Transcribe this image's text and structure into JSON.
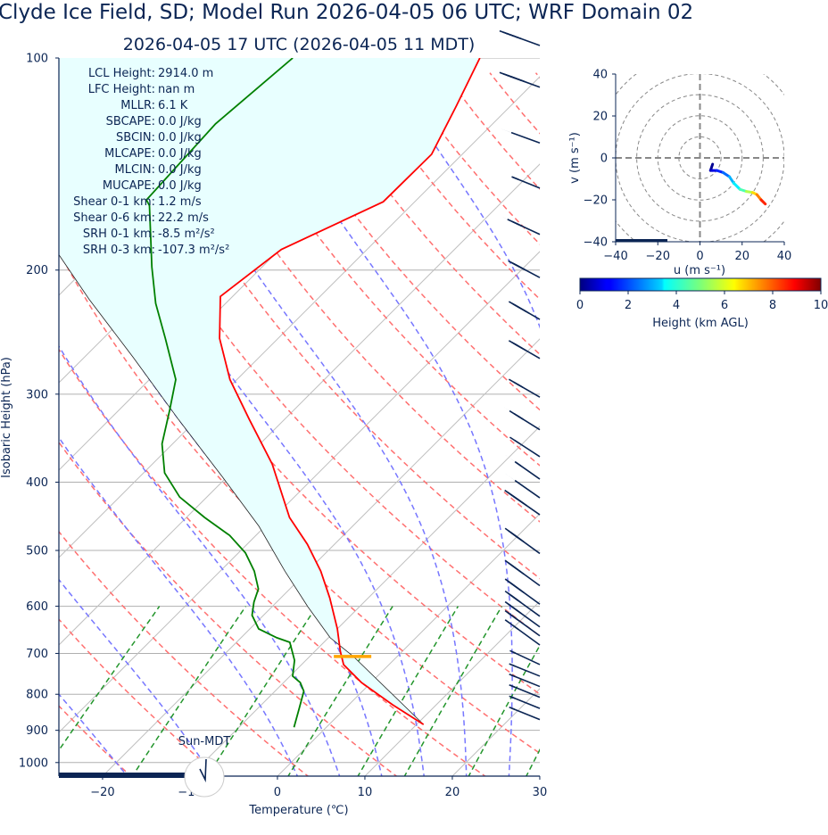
{
  "title": "Clyde Ice Field, SD; Model Run 2026-04-05 06 UTC; WRF Domain 02",
  "subtitle": "2026-04-05 17 UTC  (2026-04-05 11 MDT)",
  "daylight_label": "Sun-MDT",
  "stats": [
    {
      "label": "LCL Height:",
      "value": "2914.0 m"
    },
    {
      "label": "LFC Height:",
      "value": "nan m"
    },
    {
      "label": "MLLR:",
      "value": "6.1 K"
    },
    {
      "label": "SBCAPE:",
      "value": "0.0 J/kg"
    },
    {
      "label": "SBCIN:",
      "value": "0.0 J/kg"
    },
    {
      "label": "MLCAPE:",
      "value": "0.0 J/kg"
    },
    {
      "label": "MLCIN:",
      "value": "0.0 J/kg"
    },
    {
      "label": "MUCAPE:",
      "value": "0.0 J/kg"
    },
    {
      "label": "Shear 0-1 km:",
      "value": "1.2 m/s"
    },
    {
      "label": "Shear 0-6 km:",
      "value": "22.2 m/s"
    },
    {
      "label": "SRH 0-1 km:",
      "value": "-8.5 m²/s²"
    },
    {
      "label": "SRH 0-3 km:",
      "value": "-107.3 m²/s²"
    }
  ],
  "chart_data": [
    {
      "type": "line",
      "subtype": "skew-t",
      "xlabel": "Temperature (℃)",
      "ylabel": "Isobaric Height (hPa)",
      "xlim": [
        -25,
        30
      ],
      "ylim": [
        1045,
        100
      ],
      "y_scale": "log",
      "xticks": [
        "−20",
        "−10",
        "0",
        "10",
        "20",
        "30"
      ],
      "xtick_values": [
        -20,
        -10,
        0,
        10,
        20,
        30
      ],
      "yticks": [
        "100",
        "200",
        "300",
        "400",
        "500",
        "600",
        "700",
        "800",
        "900",
        "1000"
      ],
      "ytick_values": [
        100,
        200,
        300,
        400,
        500,
        600,
        700,
        800,
        900,
        1000
      ],
      "grid": true,
      "colors": {
        "temperature": "#ff0000",
        "dewpoint": "#008000",
        "parcel": "#000000",
        "cin_fill": "#e8ffff",
        "dry_adiabat": "#ff7070",
        "moist_adiabat": "#7777ff",
        "mixing_ratio": "#22952b",
        "lcl": "#ffa500",
        "barb": "#0b2554"
      },
      "temperature": [
        [
          883,
          10.8
        ],
        [
          828,
          5.0
        ],
        [
          770,
          -1.1
        ],
        [
          726,
          -5.2
        ],
        [
          695,
          -7.1
        ],
        [
          646,
          -10.0
        ],
        [
          584,
          -14.4
        ],
        [
          535,
          -18.5
        ],
        [
          490,
          -23.1
        ],
        [
          449,
          -28.2
        ],
        [
          377,
          -36.3
        ],
        [
          326,
          -44.0
        ],
        [
          286,
          -50.8
        ],
        [
          250,
          -56.7
        ],
        [
          218,
          -61.4
        ],
        [
          187,
          -59.8
        ],
        [
          160,
          -53.6
        ],
        [
          137,
          -53.5
        ],
        [
          117,
          -56.2
        ],
        [
          100,
          -59.0
        ]
      ],
      "dewpoint": [
        [
          891,
          -3.7
        ],
        [
          840,
          -5.2
        ],
        [
          792,
          -6.7
        ],
        [
          770,
          -8.1
        ],
        [
          754,
          -9.7
        ],
        [
          716,
          -11.3
        ],
        [
          675,
          -13.9
        ],
        [
          665,
          -15.9
        ],
        [
          646,
          -19.0
        ],
        [
          618,
          -21.3
        ],
        [
          592,
          -22.6
        ],
        [
          567,
          -23.6
        ],
        [
          535,
          -26.1
        ],
        [
          504,
          -29.2
        ],
        [
          476,
          -33.0
        ],
        [
          449,
          -37.9
        ],
        [
          420,
          -43.1
        ],
        [
          388,
          -47.6
        ],
        [
          353,
          -51.2
        ],
        [
          316,
          -54.2
        ],
        [
          286,
          -57.0
        ],
        [
          250,
          -62.9
        ],
        [
          223,
          -68.0
        ],
        [
          198,
          -72.6
        ],
        [
          162,
          -79.9
        ],
        [
          159,
          -80.9
        ],
        [
          124,
          -81.7
        ],
        [
          100,
          -80.4
        ]
      ],
      "parcel": [
        [
          883,
          10.8
        ],
        [
          707,
          -5.0
        ],
        [
          665,
          -9.8
        ],
        [
          601,
          -15.9
        ],
        [
          535,
          -22.6
        ],
        [
          462,
          -30.7
        ],
        [
          394,
          -40.4
        ],
        [
          326,
          -52.1
        ],
        [
          266,
          -64.4
        ],
        [
          220,
          -76.1
        ],
        [
          190,
          -84.7
        ],
        [
          150,
          -100
        ],
        [
          100,
          -118
        ]
      ],
      "lcl": [
        707,
        -5.0
      ],
      "dry_adiabats_theta_c": [
        -30,
        -20,
        -10,
        0,
        10,
        20,
        30,
        40,
        50,
        60,
        70,
        80,
        90,
        100,
        110,
        120,
        130,
        140,
        150,
        160,
        170,
        180,
        190,
        200
      ],
      "moist_adiabats_t0_c": [
        -50,
        -40,
        -30,
        -20,
        -10,
        0,
        5,
        10,
        15,
        20,
        25,
        30,
        35,
        40,
        45,
        50
      ],
      "mixing_ratios": [
        0.0004,
        0.001,
        0.002,
        0.004,
        0.007,
        0.01,
        0.016,
        0.024,
        0.032
      ],
      "wind_barbs_kt": [
        [
          96,
          35,
          290
        ],
        [
          110,
          45,
          290
        ],
        [
          132,
          50,
          290
        ],
        [
          153,
          55,
          292
        ],
        [
          178,
          65,
          295
        ],
        [
          205,
          80,
          298
        ],
        [
          235,
          85,
          300
        ],
        [
          267,
          80,
          300
        ],
        [
          303,
          65,
          300
        ],
        [
          337,
          65,
          302
        ],
        [
          368,
          60,
          303
        ],
        [
          396,
          55,
          305
        ],
        [
          421,
          50,
          305
        ],
        [
          445,
          45,
          305
        ],
        [
          505,
          40,
          306
        ],
        [
          561,
          35,
          306
        ],
        [
          596,
          35,
          306
        ],
        [
          620,
          30,
          306
        ],
        [
          642,
          25,
          306
        ],
        [
          661,
          20,
          306
        ],
        [
          681,
          15,
          306
        ],
        [
          726,
          5,
          295
        ],
        [
          754,
          5,
          292
        ],
        [
          780,
          5,
          292
        ],
        [
          808,
          5,
          292
        ],
        [
          838,
          5,
          292
        ],
        [
          869,
          5,
          292
        ]
      ]
    },
    {
      "type": "line",
      "subtype": "hodograph",
      "xlabel": "u (m s⁻¹)",
      "ylabel": "v (m s⁻¹)",
      "xlim": [
        -40,
        40
      ],
      "ylim": [
        -40,
        40
      ],
      "xticks": [
        "−40",
        "−20",
        "0",
        "20",
        "40"
      ],
      "yticks": [
        "40",
        "20",
        "0",
        "−20",
        "−40"
      ],
      "tick_values": [
        -40,
        -20,
        0,
        20,
        40
      ],
      "ring_interval": 10,
      "u": [
        6,
        5,
        6,
        8,
        11,
        14,
        16,
        19,
        22,
        25,
        27,
        29,
        31
      ],
      "v": [
        -3,
        -6,
        -6,
        -6,
        -7,
        -9,
        -12,
        -15,
        -16,
        -16.5,
        -17.5,
        -20,
        -22
      ],
      "height_km": [
        0.2,
        0.6,
        1.0,
        1.6,
        2.3,
        3.0,
        3.6,
        4.5,
        5.5,
        6.6,
        7.5,
        8.4,
        9.2
      ],
      "colorbar": {
        "label": "Height (km AGL)",
        "range": [
          0,
          10
        ],
        "ticks": [
          "0",
          "2",
          "4",
          "6",
          "8",
          "10"
        ],
        "tick_values": [
          0,
          2,
          4,
          6,
          8,
          10
        ],
        "colormap": "jet"
      }
    }
  ]
}
